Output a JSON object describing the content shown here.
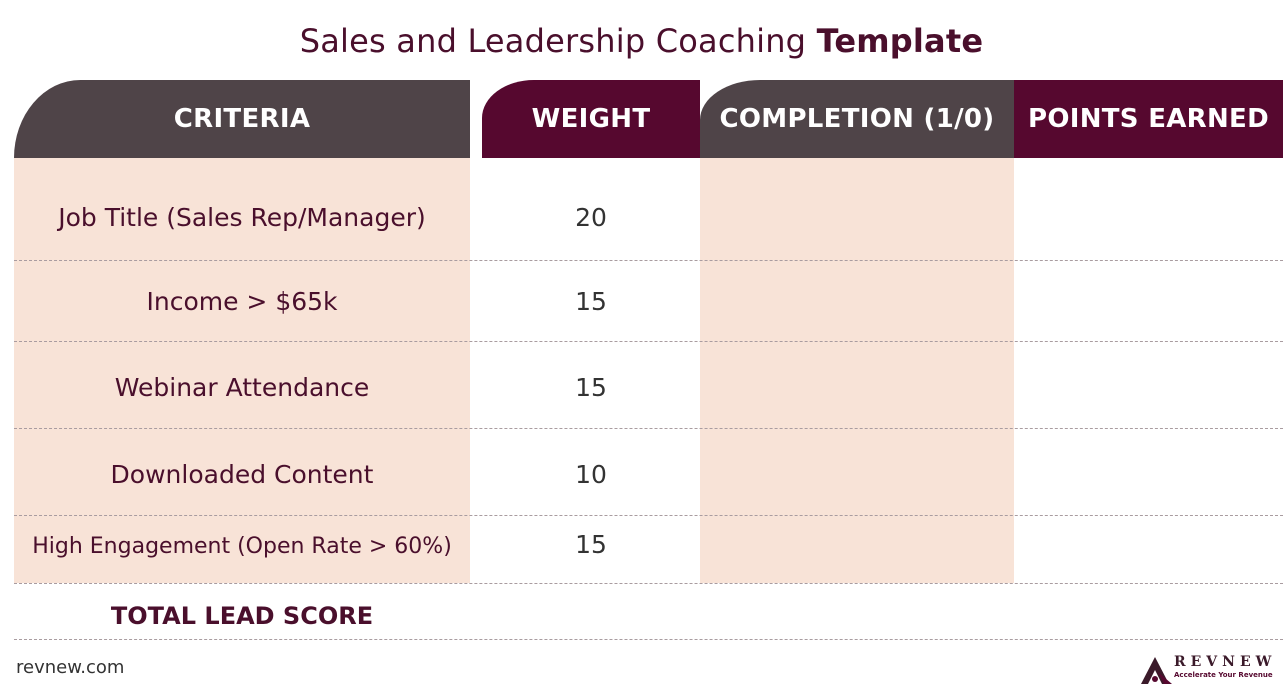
{
  "title": {
    "regular": "Sales and Leadership Coaching ",
    "bold": "Template"
  },
  "headers": {
    "criteria": "CRITERIA",
    "weight": "WEIGHT",
    "completion": "COMPLETION (1/0)",
    "points": "POINTS EARNED"
  },
  "rows": [
    {
      "criteria": "Job Title (Sales Rep/Manager)",
      "weight": "20",
      "completion": "",
      "points": ""
    },
    {
      "criteria": "Income > $65k",
      "weight": "15",
      "completion": "",
      "points": ""
    },
    {
      "criteria": "Webinar Attendance",
      "weight": "15",
      "completion": "",
      "points": ""
    },
    {
      "criteria": "Downloaded Content",
      "weight": "10",
      "completion": "",
      "points": ""
    },
    {
      "criteria": "High Engagement (Open Rate > 60%)",
      "weight": "15",
      "completion": "",
      "points": ""
    }
  ],
  "total": {
    "label": "TOTAL LEAD SCORE",
    "value": ""
  },
  "footer": {
    "url": "revnew.com"
  },
  "logo": {
    "name": "REVNEW",
    "tagline": "Accelerate Your Revenue",
    "icon": "revnew-logo-icon"
  },
  "colors": {
    "plum": "#56082f",
    "taupe": "#4f4448",
    "peach": "#f8e3d7",
    "text": "#4a0f2c"
  }
}
